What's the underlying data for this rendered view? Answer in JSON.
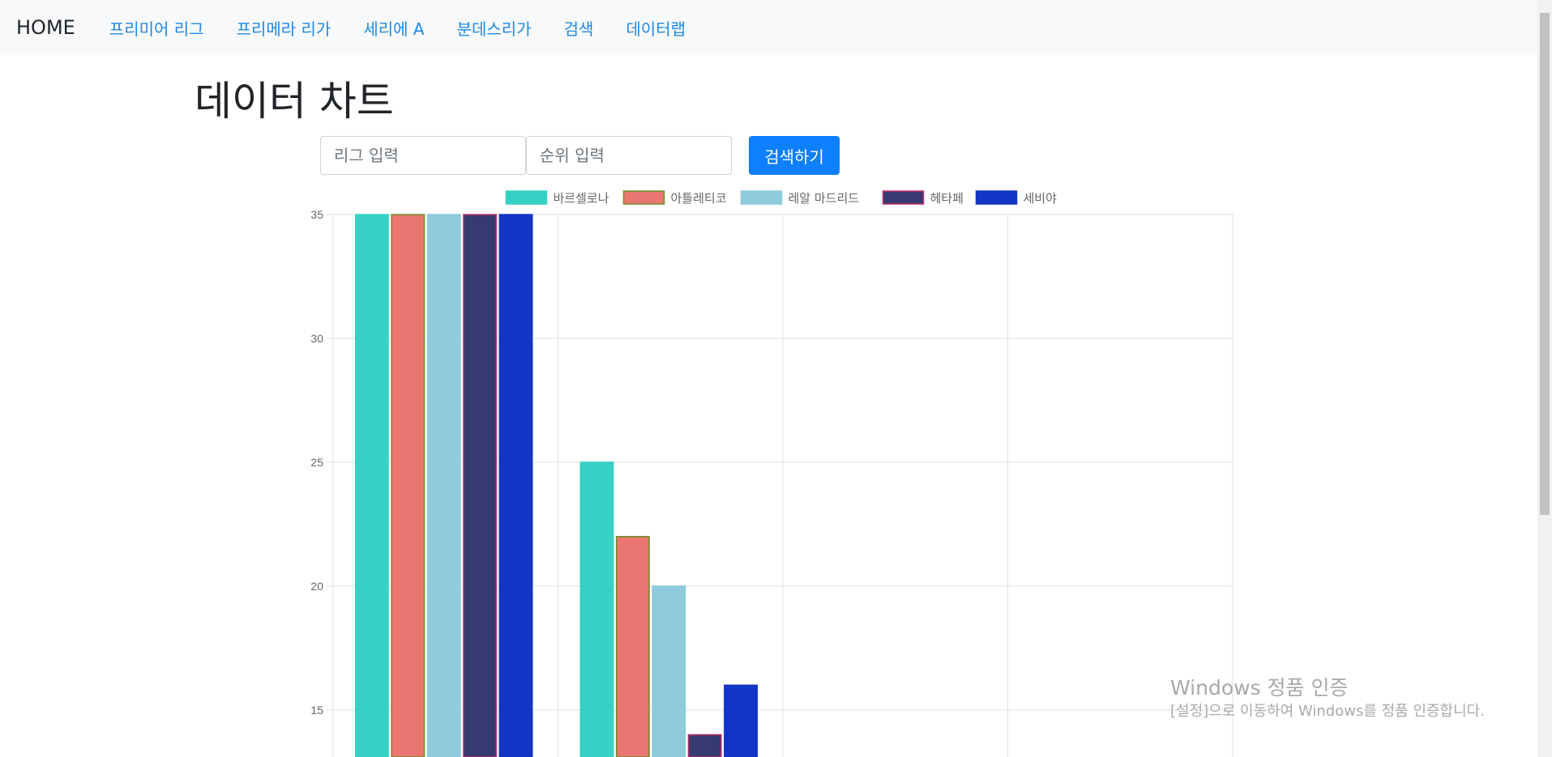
{
  "nav": {
    "brand": "HOME",
    "links": [
      "프리미어 리그",
      "프리메라 리가",
      "세리에 A",
      "분데스리가",
      "검색",
      "데이터랩"
    ]
  },
  "page": {
    "title": "데이터 차트"
  },
  "search": {
    "league_placeholder": "리그 입력",
    "rank_placeholder": "순위 입력",
    "button_label": "검색하기"
  },
  "chart_data": {
    "type": "bar",
    "categories": [
      "",
      "",
      "",
      ""
    ],
    "series": [
      {
        "name": "바르셀로나",
        "values": [
          35,
          25,
          null,
          null
        ],
        "color": "#36d1c4",
        "border": "#36d1c4"
      },
      {
        "name": "아틀레티코",
        "values": [
          35,
          22,
          null,
          null
        ],
        "color": "#ea7672",
        "border": "#6b8e23"
      },
      {
        "name": "레알 마드리드",
        "values": [
          35,
          20,
          null,
          null
        ],
        "color": "#8ecbdc",
        "border": "#8ecbdc"
      },
      {
        "name": "헤타페",
        "values": [
          35,
          14,
          null,
          null
        ],
        "color": "#363a70",
        "border": "#c0306a"
      },
      {
        "name": "세비야",
        "values": [
          35,
          16,
          null,
          null
        ],
        "color": "#1235c6",
        "border": "#1235c6"
      }
    ],
    "y_ticks": [
      "35",
      "30",
      "25",
      "20",
      "15"
    ],
    "ylim": [
      13.1,
      35
    ],
    "legend_position": "top",
    "grid": true
  },
  "watermark": {
    "title": "Windows 정품 인증",
    "subtitle": "[설정]으로 이동하여 Windows를 정품 인증합니다."
  }
}
